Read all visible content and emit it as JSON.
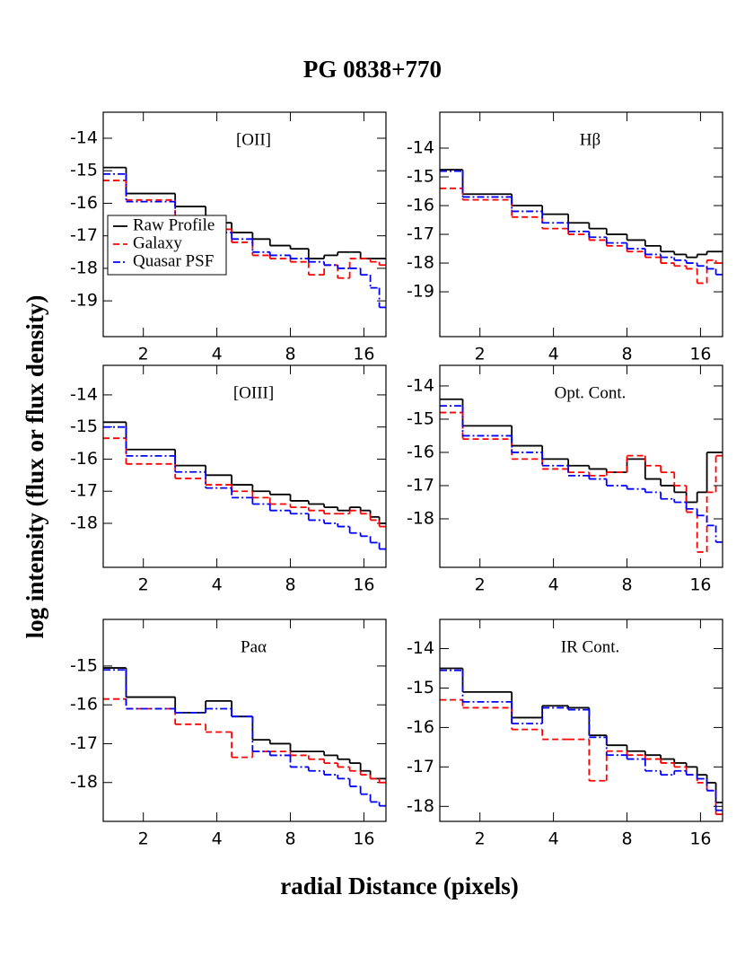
{
  "title": "PG 0838+770",
  "xlabel": "radial Distance (pixels)",
  "ylabel": "log intensity (flux or flux density)",
  "chart_data": [
    {
      "type": "step",
      "title": "[OII]",
      "xscale": "log",
      "xlim": [
        1.37,
        19.7
      ],
      "ylim": [
        -20.1,
        -13.2
      ],
      "xticks": [
        2,
        4,
        8,
        16
      ],
      "yticks": [
        -19,
        -18,
        -17,
        -16,
        -15,
        -14
      ],
      "legend": "center left",
      "x": [
        1.37,
        1.7,
        2.7,
        3.6,
        4.6,
        5.6,
        6.6,
        8,
        9.5,
        11,
        12.5,
        14,
        15.5,
        17,
        18.5
      ],
      "series": [
        {
          "name": "Raw Profile",
          "color": "#000000",
          "linestyle": "solid",
          "values": [
            -14.9,
            -15.7,
            -16.1,
            -16.6,
            -16.9,
            -17.1,
            -17.3,
            -17.4,
            -17.7,
            -17.6,
            -17.5,
            -17.5,
            -17.7,
            -17.7,
            -17.7
          ]
        },
        {
          "name": "Galaxy",
          "color": "#ff0000",
          "linestyle": "dashed",
          "values": [
            -15.3,
            -15.9,
            -16.4,
            -16.8,
            -17.2,
            -17.6,
            -17.7,
            -17.8,
            -18.2,
            -17.9,
            -18.3,
            -17.7,
            -17.7,
            -17.8,
            -17.9
          ]
        },
        {
          "name": "Quasar PSF",
          "color": "#0000ff",
          "linestyle": "dashdot",
          "values": [
            -15.1,
            -15.95,
            -16.6,
            -16.9,
            -17.1,
            -17.5,
            -17.6,
            -17.7,
            -17.8,
            -17.9,
            -18.0,
            -18.0,
            -18.2,
            -18.6,
            -19.2
          ]
        }
      ]
    },
    {
      "type": "step",
      "title": "Hβ",
      "xscale": "log",
      "xlim": [
        1.37,
        19.7
      ],
      "ylim": [
        -20.56,
        -12.75
      ],
      "xticks": [
        2,
        4,
        8,
        16
      ],
      "yticks": [
        -19,
        -18,
        -17,
        -16,
        -15,
        -14
      ],
      "x": [
        1.37,
        1.7,
        2.7,
        3.6,
        4.6,
        5.6,
        6.6,
        8,
        9.5,
        11,
        12.5,
        14,
        15.5,
        17,
        18.5
      ],
      "series": [
        {
          "color": "#000000",
          "linestyle": "solid",
          "values": [
            -14.75,
            -15.6,
            -16.0,
            -16.3,
            -16.6,
            -16.8,
            -17.0,
            -17.2,
            -17.4,
            -17.6,
            -17.7,
            -17.8,
            -17.7,
            -17.6,
            -17.6
          ]
        },
        {
          "color": "#ff0000",
          "linestyle": "dashed",
          "values": [
            -15.4,
            -15.8,
            -16.4,
            -16.8,
            -17.0,
            -17.2,
            -17.4,
            -17.6,
            -17.8,
            -18.0,
            -18.1,
            -18.2,
            -18.7,
            -17.9,
            -18.0
          ]
        },
        {
          "color": "#0000ff",
          "linestyle": "dashdot",
          "values": [
            -14.8,
            -15.7,
            -16.2,
            -16.6,
            -16.9,
            -17.1,
            -17.3,
            -17.5,
            -17.7,
            -17.8,
            -17.9,
            -18.0,
            -18.1,
            -18.2,
            -18.4
          ]
        }
      ]
    },
    {
      "type": "step",
      "title": "[OIII]",
      "xscale": "log",
      "xlim": [
        1.37,
        19.7
      ],
      "ylim": [
        -19.37,
        -13.08
      ],
      "xticks": [
        2,
        4,
        8,
        16
      ],
      "yticks": [
        -18,
        -17,
        -16,
        -15,
        -14
      ],
      "x": [
        1.37,
        1.7,
        2.7,
        3.6,
        4.6,
        5.6,
        6.6,
        8,
        9.5,
        11,
        12.5,
        14,
        15.5,
        17,
        18.5
      ],
      "series": [
        {
          "color": "#000000",
          "linestyle": "solid",
          "values": [
            -14.85,
            -15.7,
            -16.2,
            -16.5,
            -16.8,
            -17.0,
            -17.1,
            -17.3,
            -17.4,
            -17.5,
            -17.6,
            -17.5,
            -17.6,
            -17.8,
            -18.0
          ]
        },
        {
          "color": "#ff0000",
          "linestyle": "dashed",
          "values": [
            -15.35,
            -16.15,
            -16.6,
            -16.8,
            -17.0,
            -17.2,
            -17.4,
            -17.5,
            -17.6,
            -17.7,
            -17.7,
            -17.6,
            -17.7,
            -17.9,
            -18.1
          ]
        },
        {
          "color": "#0000ff",
          "linestyle": "dashdot",
          "values": [
            -15.0,
            -15.9,
            -16.4,
            -16.9,
            -17.2,
            -17.4,
            -17.6,
            -17.7,
            -17.9,
            -18.0,
            -18.1,
            -18.3,
            -18.4,
            -18.6,
            -18.8
          ]
        }
      ]
    },
    {
      "type": "step",
      "title": "Opt. Cont.",
      "xscale": "log",
      "xlim": [
        1.37,
        19.7
      ],
      "ylim": [
        -19.46,
        -13.38
      ],
      "xticks": [
        2,
        4,
        8,
        16
      ],
      "yticks": [
        -18,
        -17,
        -16,
        -15,
        -14
      ],
      "x": [
        1.37,
        1.7,
        2.7,
        3.6,
        4.6,
        5.6,
        6.6,
        8,
        9.5,
        11,
        12.5,
        14,
        15.5,
        17,
        18.5
      ],
      "series": [
        {
          "color": "#000000",
          "linestyle": "solid",
          "values": [
            -14.4,
            -15.2,
            -15.8,
            -16.2,
            -16.4,
            -16.5,
            -16.6,
            -16.2,
            -16.8,
            -17.0,
            -17.2,
            -17.5,
            -17.2,
            -16.0,
            -16.0
          ]
        },
        {
          "color": "#ff0000",
          "linestyle": "dashed",
          "values": [
            -14.8,
            -15.6,
            -16.2,
            -16.5,
            -16.6,
            -16.7,
            -16.6,
            -16.1,
            -16.4,
            -16.6,
            -17.0,
            -17.8,
            -19.0,
            -17.2,
            -16.1
          ]
        },
        {
          "color": "#0000ff",
          "linestyle": "dashdot",
          "values": [
            -14.6,
            -15.5,
            -16.0,
            -16.4,
            -16.7,
            -16.8,
            -17.0,
            -17.1,
            -17.2,
            -17.4,
            -17.5,
            -17.7,
            -17.9,
            -18.2,
            -18.7
          ]
        }
      ]
    },
    {
      "type": "step",
      "title": "Paα",
      "xscale": "log",
      "xlim": [
        1.37,
        19.7
      ],
      "ylim": [
        -19.0,
        -13.8
      ],
      "xticks": [
        2,
        4,
        8,
        16
      ],
      "yticks": [
        -18,
        -17,
        -16,
        -15
      ],
      "x": [
        1.37,
        1.7,
        2.7,
        3.6,
        4.6,
        5.6,
        6.6,
        8,
        9.5,
        11,
        12.5,
        14,
        15.5,
        17,
        18.5
      ],
      "series": [
        {
          "color": "#000000",
          "linestyle": "solid",
          "values": [
            -15.05,
            -15.8,
            -16.2,
            -15.9,
            -16.3,
            -16.9,
            -17.0,
            -17.2,
            -17.2,
            -17.3,
            -17.4,
            -17.5,
            -17.7,
            -17.9,
            -17.9
          ]
        },
        {
          "color": "#ff0000",
          "linestyle": "dashed",
          "values": [
            -15.85,
            -16.1,
            -16.5,
            -16.7,
            -17.35,
            -17.2,
            -17.2,
            -17.3,
            -17.4,
            -17.5,
            -17.6,
            -17.7,
            -17.8,
            -17.9,
            -18.0
          ]
        },
        {
          "color": "#0000ff",
          "linestyle": "dashdot",
          "values": [
            -15.1,
            -16.1,
            -16.2,
            -16.1,
            -16.3,
            -17.2,
            -17.3,
            -17.6,
            -17.7,
            -17.8,
            -17.9,
            -18.1,
            -18.3,
            -18.5,
            -18.6
          ]
        }
      ]
    },
    {
      "type": "step",
      "title": "IR Cont.",
      "xscale": "log",
      "xlim": [
        1.37,
        19.7
      ],
      "ylim": [
        -18.38,
        -13.26
      ],
      "xticks": [
        2,
        4,
        8,
        16
      ],
      "yticks": [
        -18,
        -17,
        -16,
        -15,
        -14
      ],
      "x": [
        1.37,
        1.7,
        2.7,
        3.6,
        4.6,
        5.6,
        6.6,
        8,
        9.5,
        11,
        12.5,
        14,
        15.5,
        17,
        18.5
      ],
      "series": [
        {
          "color": "#000000",
          "linestyle": "solid",
          "values": [
            -14.5,
            -15.1,
            -15.75,
            -15.45,
            -15.5,
            -16.2,
            -16.45,
            -16.6,
            -16.7,
            -16.8,
            -16.9,
            -17.0,
            -17.2,
            -17.4,
            -17.9
          ]
        },
        {
          "color": "#ff0000",
          "linestyle": "dashed",
          "values": [
            -15.3,
            -15.5,
            -16.05,
            -16.3,
            -16.3,
            -17.35,
            -16.6,
            -16.7,
            -16.8,
            -16.9,
            -17.0,
            -17.2,
            -17.4,
            -17.6,
            -18.2
          ]
        },
        {
          "color": "#0000ff",
          "linestyle": "dashdot",
          "values": [
            -14.55,
            -15.35,
            -15.9,
            -15.5,
            -15.55,
            -16.25,
            -16.7,
            -16.8,
            -17.1,
            -17.2,
            -17.1,
            -17.2,
            -17.3,
            -17.6,
            -18.1
          ]
        }
      ]
    }
  ]
}
